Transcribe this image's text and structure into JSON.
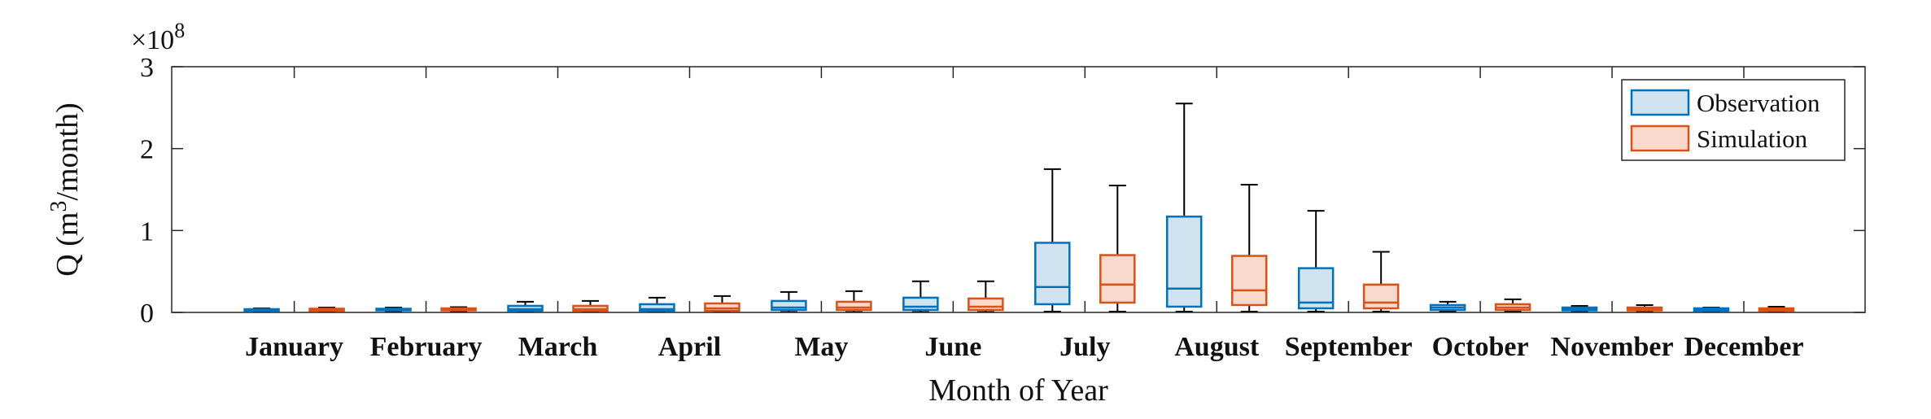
{
  "chart_data": {
    "type": "boxplot",
    "categories": [
      "January",
      "February",
      "March",
      "April",
      "May",
      "June",
      "July",
      "August",
      "September",
      "October",
      "November",
      "December"
    ],
    "xlabel": "Month of Year",
    "ylabel_prefix": "Q (m",
    "ylabel_sup": "3",
    "ylabel_suffix": "/month)",
    "ylim": [
      0,
      300000000
    ],
    "yticks": [
      0,
      100000000,
      200000000,
      300000000
    ],
    "ytick_labels": [
      "0",
      "1",
      "2",
      "3"
    ],
    "exponent_base": "×10",
    "exponent_power": "8",
    "legend_position": "top-right",
    "grid": false,
    "series": [
      {
        "name": "Observation",
        "color": "#0072BD",
        "fill": "#cfe3f1",
        "boxes": [
          {
            "whisker_low": 1000000,
            "q1": 2000000,
            "median": 3000000,
            "q3": 4000000,
            "whisker_high": 5000000
          },
          {
            "whisker_low": 1000000,
            "q1": 2500000,
            "median": 3500000,
            "q3": 4500000,
            "whisker_high": 6000000
          },
          {
            "whisker_low": 500000,
            "q1": 2000000,
            "median": 4000000,
            "q3": 8000000,
            "whisker_high": 13000000
          },
          {
            "whisker_low": 500000,
            "q1": 2000000,
            "median": 4000000,
            "q3": 10000000,
            "whisker_high": 18000000
          },
          {
            "whisker_low": 500000,
            "q1": 3000000,
            "median": 6000000,
            "q3": 14000000,
            "whisker_high": 25000000
          },
          {
            "whisker_low": 500000,
            "q1": 3000000,
            "median": 7000000,
            "q3": 18000000,
            "whisker_high": 38000000
          },
          {
            "whisker_low": 1000000,
            "q1": 10000000,
            "median": 31000000,
            "q3": 85000000,
            "whisker_high": 175000000
          },
          {
            "whisker_low": 1000000,
            "q1": 7000000,
            "median": 29000000,
            "q3": 117000000,
            "whisker_high": 255000000
          },
          {
            "whisker_low": 1000000,
            "q1": 5000000,
            "median": 12000000,
            "q3": 54000000,
            "whisker_high": 124000000
          },
          {
            "whisker_low": 1000000,
            "q1": 3000000,
            "median": 6000000,
            "q3": 9000000,
            "whisker_high": 13000000
          },
          {
            "whisker_low": 1000000,
            "q1": 2500000,
            "median": 4000000,
            "q3": 6000000,
            "whisker_high": 8000000
          },
          {
            "whisker_low": 1000000,
            "q1": 2000000,
            "median": 3000000,
            "q3": 5000000,
            "whisker_high": 6000000
          }
        ]
      },
      {
        "name": "Simulation",
        "color": "#D95319",
        "fill": "#f8d9cb",
        "boxes": [
          {
            "whisker_low": 1000000,
            "q1": 2000000,
            "median": 3000000,
            "q3": 4500000,
            "whisker_high": 6000000
          },
          {
            "whisker_low": 1000000,
            "q1": 2500000,
            "median": 3500000,
            "q3": 5000000,
            "whisker_high": 6500000
          },
          {
            "whisker_low": 500000,
            "q1": 2000000,
            "median": 4000000,
            "q3": 8000000,
            "whisker_high": 14000000
          },
          {
            "whisker_low": 500000,
            "q1": 2000000,
            "median": 5000000,
            "q3": 11000000,
            "whisker_high": 20000000
          },
          {
            "whisker_low": 500000,
            "q1": 3000000,
            "median": 6000000,
            "q3": 13000000,
            "whisker_high": 26000000
          },
          {
            "whisker_low": 500000,
            "q1": 3000000,
            "median": 7000000,
            "q3": 17000000,
            "whisker_high": 38000000
          },
          {
            "whisker_low": 1000000,
            "q1": 12000000,
            "median": 34000000,
            "q3": 70000000,
            "whisker_high": 155000000
          },
          {
            "whisker_low": 1000000,
            "q1": 9000000,
            "median": 27000000,
            "q3": 69000000,
            "whisker_high": 156000000
          },
          {
            "whisker_low": 1000000,
            "q1": 5000000,
            "median": 12000000,
            "q3": 34000000,
            "whisker_high": 74000000
          },
          {
            "whisker_low": 1000000,
            "q1": 3000000,
            "median": 6000000,
            "q3": 10000000,
            "whisker_high": 16000000
          },
          {
            "whisker_low": 1000000,
            "q1": 2500000,
            "median": 4000000,
            "q3": 6000000,
            "whisker_high": 9000000
          },
          {
            "whisker_low": 1000000,
            "q1": 2000000,
            "median": 3000000,
            "q3": 5000000,
            "whisker_high": 7000000
          }
        ]
      }
    ]
  }
}
